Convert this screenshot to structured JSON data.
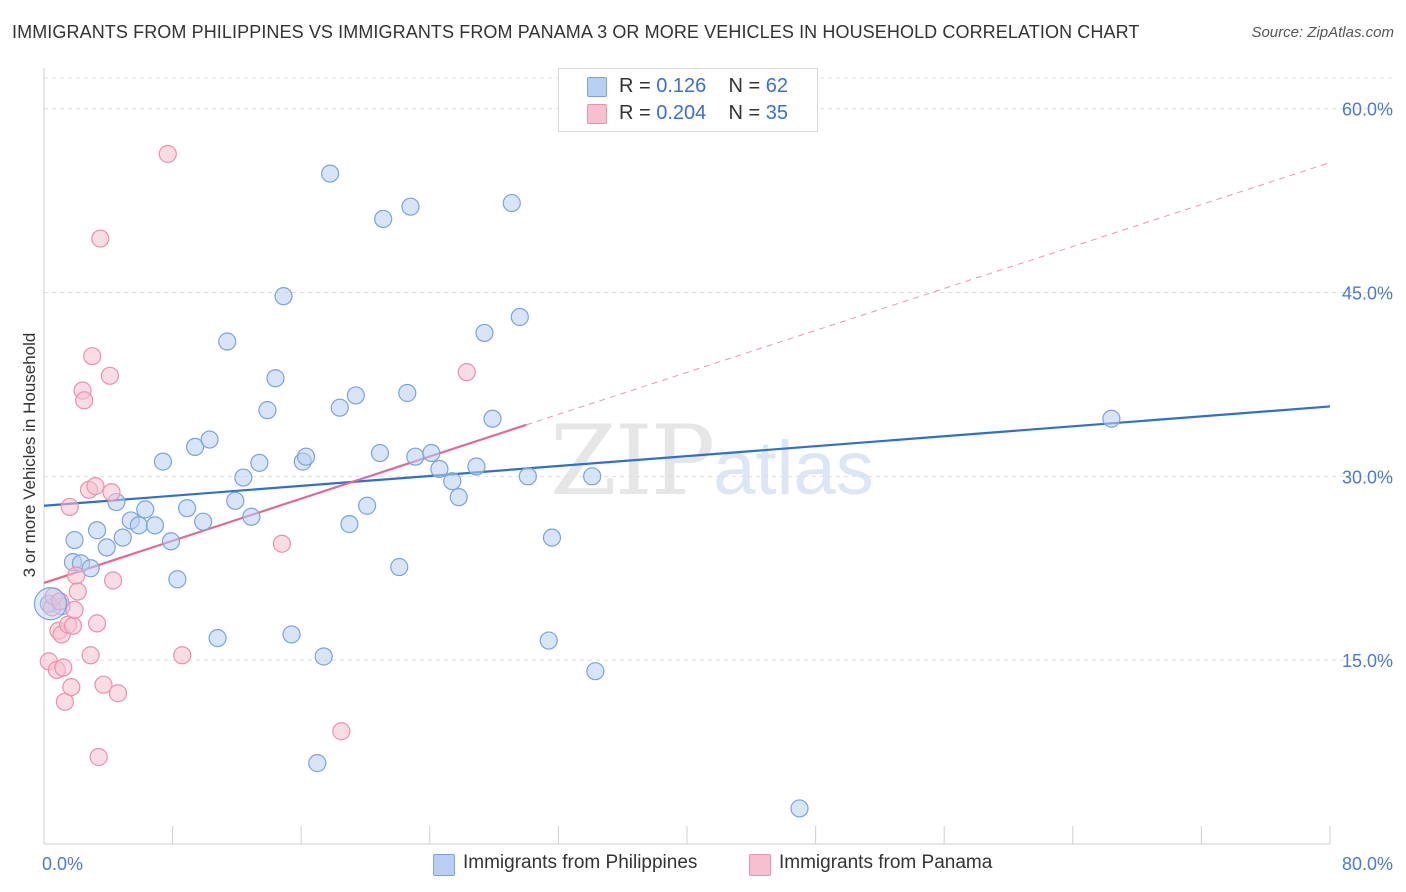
{
  "title": "IMMIGRANTS FROM PHILIPPINES VS IMMIGRANTS FROM PANAMA 3 OR MORE VEHICLES IN HOUSEHOLD CORRELATION CHART",
  "source": "Source: ZipAtlas.com",
  "watermark": {
    "zip": "ZIP",
    "atlas": "atlas"
  },
  "legend": {
    "series1": {
      "r_label": "R =",
      "r_value": "0.126",
      "n_label": "N =",
      "n_value": "62"
    },
    "series2": {
      "r_label": "R =",
      "r_value": "0.204",
      "n_label": "N =",
      "n_value": "35"
    }
  },
  "bottom_legend": {
    "series1": "Immigrants from Philippines",
    "series2": "Immigrants from Panama"
  },
  "colors": {
    "philippines_fill": "#b8cff3",
    "philippines_stroke": "#7aa3e0",
    "philippines_line": "#2f6fce",
    "panama_fill": "#f7c0d0",
    "panama_stroke": "#eb90ad",
    "panama_line": "#e06a96",
    "grid": "#dedede",
    "tick_label": "#4a7bd0"
  },
  "chart_data": {
    "type": "scatter",
    "ylabel": "3 or more Vehicles in Household",
    "xlabel": "",
    "xlim": [
      0,
      80
    ],
    "ylim": [
      0,
      62.5
    ],
    "y_ticks": [
      {
        "value": 15,
        "label": "15.0%"
      },
      {
        "value": 30,
        "label": "30.0%"
      },
      {
        "value": 45,
        "label": "45.0%"
      },
      {
        "value": 60,
        "label": "60.0%"
      }
    ],
    "x_tick_labels": [
      {
        "value": 0,
        "label": "0.0%"
      },
      {
        "value": 80,
        "label": "80.0%"
      }
    ],
    "x_minor_ticks": [
      0,
      8,
      16,
      24,
      32,
      40,
      48,
      56,
      64,
      72,
      80
    ],
    "grid": "horizontal dashed",
    "series": [
      {
        "name": "Immigrants from Philippines",
        "r": 0.126,
        "n": 62,
        "trend": {
          "x": [
            0,
            80
          ],
          "y": [
            27.6,
            35.7
          ],
          "style": "solid"
        },
        "points": [
          [
            0.3,
            19.6
          ],
          [
            1.8,
            23.0
          ],
          [
            1.9,
            24.8
          ],
          [
            2.3,
            22.9
          ],
          [
            2.9,
            22.5
          ],
          [
            3.3,
            25.6
          ],
          [
            3.9,
            24.2
          ],
          [
            4.5,
            27.9
          ],
          [
            4.9,
            25.0
          ],
          [
            5.4,
            26.4
          ],
          [
            5.9,
            26.0
          ],
          [
            6.3,
            27.3
          ],
          [
            6.9,
            26.0
          ],
          [
            7.4,
            31.2
          ],
          [
            7.9,
            24.7
          ],
          [
            8.3,
            21.6
          ],
          [
            8.9,
            27.4
          ],
          [
            9.4,
            32.4
          ],
          [
            9.9,
            26.3
          ],
          [
            10.3,
            33.0
          ],
          [
            10.8,
            16.8
          ],
          [
            11.4,
            41.0
          ],
          [
            11.9,
            28.0
          ],
          [
            12.4,
            29.9
          ],
          [
            12.9,
            26.7
          ],
          [
            13.4,
            31.1
          ],
          [
            13.9,
            35.4
          ],
          [
            14.4,
            38.0
          ],
          [
            14.9,
            44.7
          ],
          [
            15.4,
            17.1
          ],
          [
            16.1,
            31.2
          ],
          [
            16.3,
            31.6
          ],
          [
            17.4,
            15.3
          ],
          [
            17.0,
            6.6
          ],
          [
            17.8,
            54.7
          ],
          [
            18.4,
            35.6
          ],
          [
            19.0,
            26.1
          ],
          [
            19.4,
            36.6
          ],
          [
            20.1,
            27.6
          ],
          [
            20.9,
            31.9
          ],
          [
            21.1,
            51.0
          ],
          [
            22.1,
            22.6
          ],
          [
            22.6,
            36.8
          ],
          [
            22.8,
            52.0
          ],
          [
            23.1,
            31.6
          ],
          [
            24.1,
            31.9
          ],
          [
            24.6,
            30.6
          ],
          [
            25.4,
            29.6
          ],
          [
            25.8,
            28.3
          ],
          [
            26.9,
            30.8
          ],
          [
            27.4,
            41.7
          ],
          [
            27.9,
            34.7
          ],
          [
            29.1,
            52.3
          ],
          [
            29.6,
            43.0
          ],
          [
            30.1,
            30.0
          ],
          [
            31.4,
            16.6
          ],
          [
            31.6,
            25.0
          ],
          [
            34.1,
            30.0
          ],
          [
            34.3,
            14.1
          ],
          [
            47.0,
            2.9
          ],
          [
            66.4,
            34.7
          ],
          [
            1.1,
            19.4
          ]
        ]
      },
      {
        "name": "Immigrants from Panama",
        "r": 0.204,
        "n": 35,
        "trend": {
          "x": [
            0,
            30
          ],
          "y": [
            21.3,
            34.2
          ],
          "style": "solid",
          "extension": {
            "x": [
              30,
              80
            ],
            "y": [
              34.2,
              55.6
            ],
            "style": "dashed"
          }
        },
        "points": [
          [
            0.3,
            14.9
          ],
          [
            0.5,
            19.3
          ],
          [
            0.6,
            20.2
          ],
          [
            0.8,
            14.2
          ],
          [
            0.9,
            17.4
          ],
          [
            1.0,
            19.8
          ],
          [
            1.1,
            17.1
          ],
          [
            1.2,
            14.4
          ],
          [
            1.3,
            11.6
          ],
          [
            1.5,
            17.9
          ],
          [
            1.6,
            27.5
          ],
          [
            1.7,
            12.8
          ],
          [
            1.8,
            17.8
          ],
          [
            1.9,
            19.1
          ],
          [
            2.0,
            21.9
          ],
          [
            2.1,
            20.6
          ],
          [
            2.4,
            37.0
          ],
          [
            2.5,
            36.2
          ],
          [
            2.8,
            28.9
          ],
          [
            2.9,
            15.4
          ],
          [
            3.0,
            39.8
          ],
          [
            3.2,
            29.2
          ],
          [
            3.3,
            18.0
          ],
          [
            3.4,
            7.1
          ],
          [
            3.5,
            49.4
          ],
          [
            3.7,
            13.0
          ],
          [
            4.1,
            38.2
          ],
          [
            4.2,
            28.7
          ],
          [
            4.3,
            21.5
          ],
          [
            4.6,
            12.3
          ],
          [
            7.7,
            56.3
          ],
          [
            8.6,
            15.4
          ],
          [
            14.8,
            24.5
          ],
          [
            18.5,
            9.2
          ],
          [
            26.3,
            38.5
          ]
        ]
      }
    ]
  }
}
